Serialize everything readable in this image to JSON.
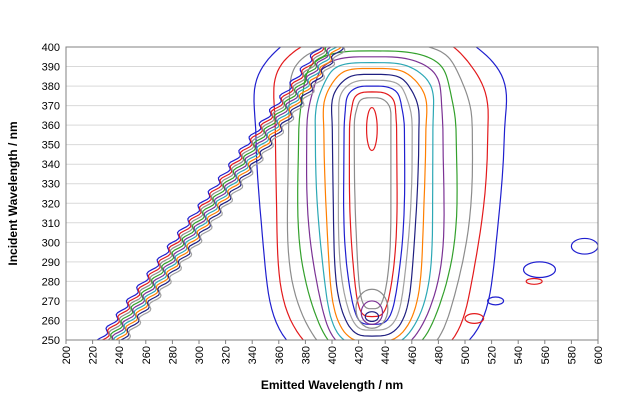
{
  "chart_data": {
    "type": "contour",
    "title": "",
    "xlabel": "Emitted Wavelength / nm",
    "ylabel": "Incident Wavelength / nm",
    "xlim": [
      200,
      600
    ],
    "ylim": [
      250,
      400
    ],
    "x_ticks": [
      200,
      220,
      240,
      260,
      280,
      300,
      320,
      340,
      360,
      380,
      400,
      420,
      440,
      460,
      480,
      500,
      520,
      540,
      560,
      580,
      600
    ],
    "y_ticks": [
      250,
      260,
      270,
      280,
      290,
      300,
      310,
      320,
      330,
      340,
      350,
      360,
      370,
      380,
      390,
      400
    ],
    "grid": "horizontal-major",
    "legend": "none",
    "level_colors": [
      "#1f1fcf",
      "#e31a1c",
      "#8c8c8c",
      "#33a02c",
      "#7b3294",
      "#2ca8b5",
      "#ff7f00",
      "#1f1f80",
      "#a0a0a0"
    ],
    "peak": {
      "x": 430,
      "y": 358
    },
    "scatter_band": {
      "x_at_250": 235,
      "x_at_400": 400
    }
  }
}
